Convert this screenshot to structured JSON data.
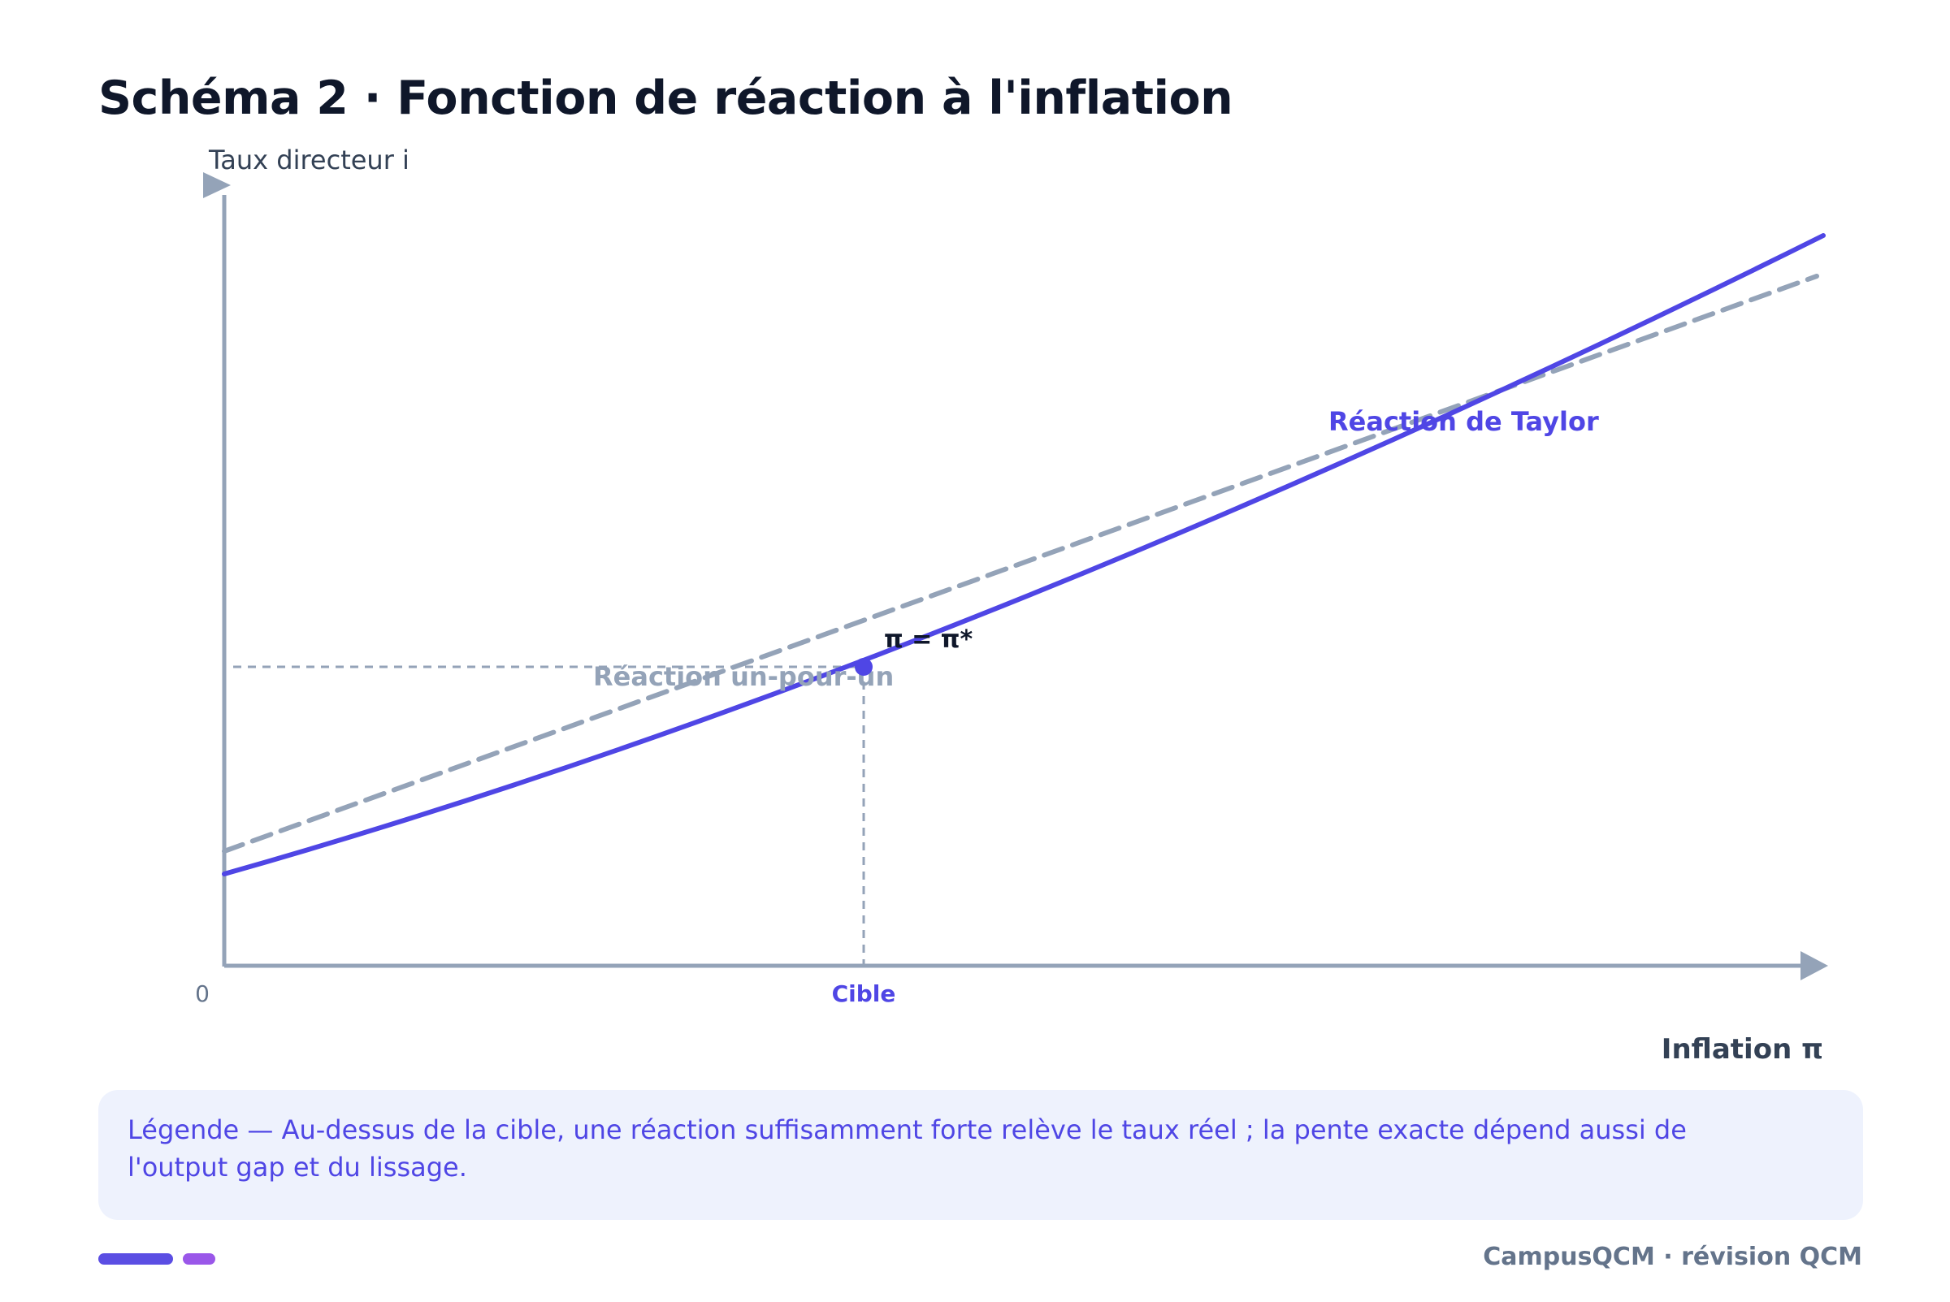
{
  "title": "Schéma 2 · Fonction de réaction à l'inflation",
  "axes": {
    "y_label": "Taux directeur i",
    "x_label": "Inflation π",
    "origin_label": "0",
    "target_tick_label": "Cible"
  },
  "curves": {
    "taylor_label": "Réaction de Taylor",
    "one_for_one_label": "Réaction un-pour-un"
  },
  "point": {
    "label": "π = π*"
  },
  "legend": {
    "text": "Légende — Au-dessus de la cible, une réaction suffisamment forte relève le taux réel ; la pente exacte dépend aussi de l'output gap et du lissage."
  },
  "footer": {
    "text": "CampusQCM · révision QCM"
  },
  "colors": {
    "taylor": "#4f46e5",
    "one_for_one": "#94a3b8",
    "axis": "#94a3b8",
    "title": "#0f172a"
  }
}
